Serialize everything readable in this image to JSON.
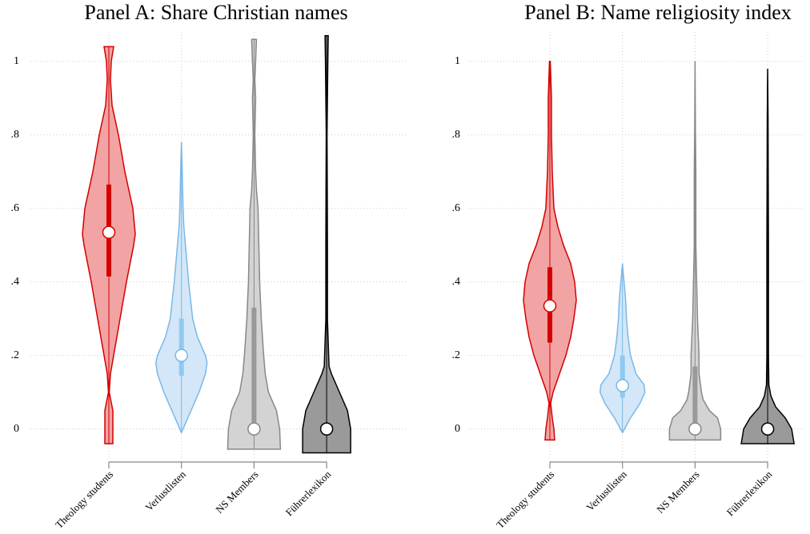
{
  "chart_data": [
    {
      "type": "violin",
      "title": "Panel A: Share Christian names",
      "categories": [
        "Theology students",
        "Verlustlisten",
        "NS Members",
        "Führerlexikon"
      ],
      "ylim": [
        -0.09,
        1.08
      ],
      "yticks": [
        0,
        {
          "value": 0.2,
          "label": ".2"
        },
        {
          "value": 0.4,
          "label": ".4"
        },
        {
          "value": 0.6,
          "label": ".6"
        },
        {
          "value": 0.8,
          "label": ".8"
        },
        1
      ],
      "grid": true,
      "groups": [
        {
          "fill": "#f2a3a3",
          "stroke": "#d40000",
          "box_color": "#d40000",
          "median": 0.535,
          "q1": 0.415,
          "q3": 0.665,
          "density_y": [
            -0.04,
            0,
            0.05,
            0.1,
            0.15,
            0.2,
            0.3,
            0.4,
            0.5,
            0.53,
            0.6,
            0.7,
            0.8,
            0.88,
            0.95,
            1.0,
            1.04
          ],
          "density": [
            0.5,
            0.5,
            0.5,
            0.05,
            0.2,
            0.6,
            1.4,
            2.2,
            3.1,
            3.3,
            3.0,
            2.0,
            1.2,
            0.4,
            0.2,
            0.3,
            0.6
          ]
        },
        {
          "fill": "#d3e7f8",
          "stroke": "#7ab8e8",
          "box_color": "#8ec9f0",
          "median": 0.2,
          "q1": 0.145,
          "q3": 0.3,
          "density_y": [
            -0.01,
            0.05,
            0.1,
            0.15,
            0.18,
            0.2,
            0.25,
            0.3,
            0.4,
            0.5,
            0.55,
            0.6,
            0.7,
            0.78
          ],
          "density": [
            0,
            1.2,
            2.2,
            3.0,
            3.2,
            3.0,
            2.0,
            1.4,
            0.9,
            0.5,
            0.3,
            0.2,
            0.1,
            0
          ]
        },
        {
          "fill": "#d3d3d3",
          "stroke": "#888888",
          "box_color": "#999999",
          "median": 0,
          "q1": 0,
          "q3": 0.33,
          "density_y": [
            -0.055,
            0,
            0.05,
            0.1,
            0.15,
            0.2,
            0.3,
            0.4,
            0.5,
            0.6,
            0.65,
            0.7,
            0.8,
            0.9,
            0.95,
            1.0,
            1.06
          ],
          "density": [
            3.3,
            3.2,
            2.8,
            1.8,
            1.4,
            1.2,
            0.9,
            0.7,
            0.6,
            0.5,
            0.3,
            0.2,
            0.1,
            0.2,
            0.1,
            0.2,
            0.3
          ]
        },
        {
          "fill": "#9a9a9a",
          "stroke": "#000000",
          "box_color": "#333333",
          "median": 0,
          "q1": 0,
          "q3": 0,
          "density_y": [
            -0.065,
            0,
            0.05,
            0.1,
            0.15,
            0.17,
            0.3,
            0.5,
            0.65,
            0.8,
            0.9,
            1.0,
            1.07
          ],
          "density": [
            3.0,
            3.0,
            2.6,
            1.6,
            0.6,
            0.3,
            0.1,
            0.1,
            0.08,
            0.05,
            0.1,
            0.15,
            0.2
          ]
        }
      ]
    },
    {
      "type": "violin",
      "title": "Panel B: Name religiosity index",
      "categories": [
        "Theology students",
        "Verlustlisten",
        "NS Members",
        "Führerlexikon"
      ],
      "ylim": [
        -0.09,
        1.08
      ],
      "yticks": [
        0,
        {
          "value": 0.2,
          "label": ".2"
        },
        {
          "value": 0.4,
          "label": ".4"
        },
        {
          "value": 0.6,
          "label": ".6"
        },
        {
          "value": 0.8,
          "label": ".8"
        },
        1
      ],
      "grid": true,
      "groups": [
        {
          "fill": "#f2a3a3",
          "stroke": "#d40000",
          "box_color": "#d40000",
          "median": 0.335,
          "q1": 0.235,
          "q3": 0.44,
          "density_y": [
            -0.03,
            0,
            0.03,
            0.07,
            0.1,
            0.15,
            0.2,
            0.25,
            0.3,
            0.35,
            0.4,
            0.45,
            0.5,
            0.55,
            0.6,
            0.7,
            0.8,
            0.9,
            1.0
          ],
          "density": [
            0.6,
            0.5,
            0.3,
            0.1,
            0.4,
            1.2,
            2.0,
            2.6,
            3.0,
            3.3,
            3.1,
            2.6,
            1.7,
            1.0,
            0.5,
            0.3,
            0.2,
            0.2,
            0.05
          ]
        },
        {
          "fill": "#d3e7f8",
          "stroke": "#7ab8e8",
          "box_color": "#8ec9f0",
          "median": 0.118,
          "q1": 0.085,
          "q3": 0.2,
          "density_y": [
            -0.01,
            0.03,
            0.07,
            0.1,
            0.12,
            0.15,
            0.2,
            0.25,
            0.3,
            0.35,
            0.4,
            0.45
          ],
          "density": [
            0,
            1.0,
            2.2,
            2.8,
            2.7,
            1.7,
            1.0,
            0.7,
            0.5,
            0.4,
            0.2,
            0
          ]
        },
        {
          "fill": "#d3d3d3",
          "stroke": "#888888",
          "box_color": "#999999",
          "median": 0,
          "q1": 0,
          "q3": 0.17,
          "density_y": [
            -0.03,
            0,
            0.03,
            0.05,
            0.08,
            0.1,
            0.15,
            0.2,
            0.3,
            0.4,
            0.5,
            0.6,
            0.7,
            0.8,
            1.0
          ],
          "density": [
            3.2,
            3.2,
            2.8,
            1.8,
            1.0,
            0.8,
            0.5,
            0.5,
            0.3,
            0.2,
            0.1,
            0.1,
            0.1,
            0.05,
            0
          ]
        },
        {
          "fill": "#9a9a9a",
          "stroke": "#000000",
          "box_color": "#333333",
          "median": 0,
          "q1": 0,
          "q3": 0,
          "density_y": [
            -0.04,
            0,
            0.03,
            0.06,
            0.09,
            0.12,
            0.2,
            0.4,
            0.5,
            0.7,
            0.85,
            0.98
          ],
          "density": [
            3.3,
            3.0,
            2.2,
            1.0,
            0.4,
            0.15,
            0.1,
            0.1,
            0.1,
            0.07,
            0.05,
            0
          ]
        }
      ]
    }
  ]
}
